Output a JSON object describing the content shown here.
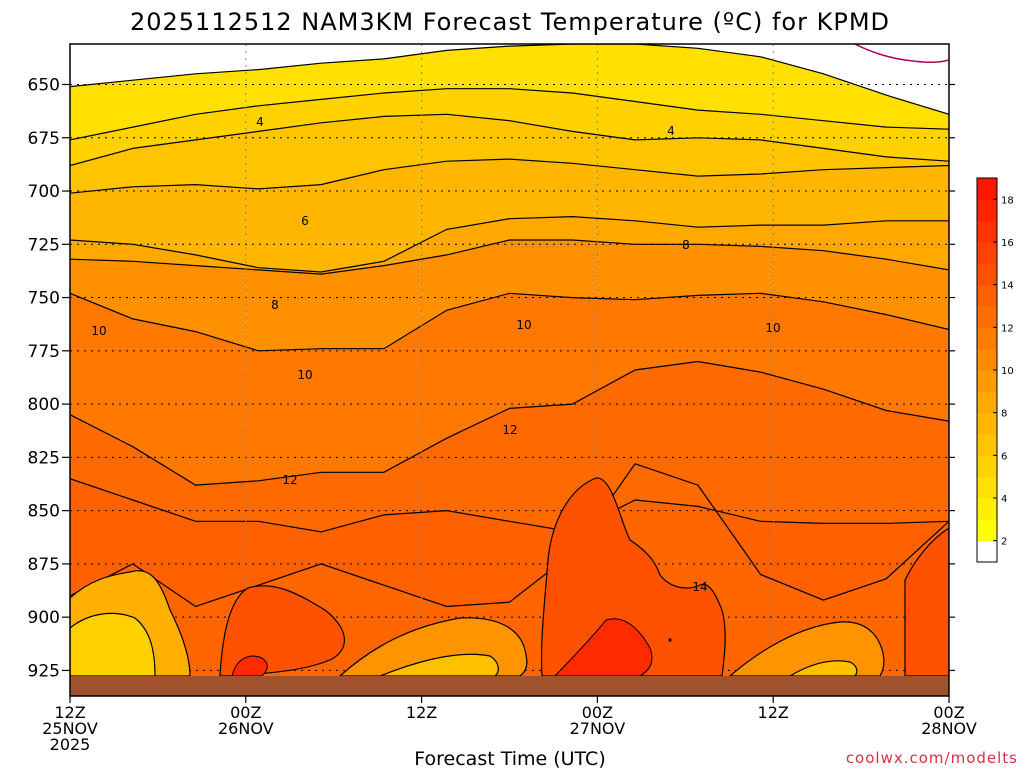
{
  "chart_data": {
    "type": "heatmap",
    "title": "2025112512 NAM3KM Forecast Temperature (ºC) for KPMD",
    "xlabel": "Forecast Time (UTC)",
    "ylabel": "",
    "credit": "coolwx.com/modelts",
    "pressure_axis": {
      "range": [
        631,
        937
      ],
      "ticks": [
        "650",
        "675",
        "700",
        "725",
        "750",
        "775",
        "800",
        "825",
        "850",
        "875",
        "900",
        "925"
      ],
      "tick_values": [
        650,
        675,
        700,
        725,
        750,
        775,
        800,
        825,
        850,
        875,
        900,
        925
      ]
    },
    "time_axis": {
      "range_hours": [
        0,
        60
      ],
      "ticks": [
        {
          "hour": 0,
          "line1": "12Z",
          "line2": "25NOV",
          "line3": "2025"
        },
        {
          "hour": 12,
          "line1": "00Z",
          "line2": "26NOV",
          "line3": ""
        },
        {
          "hour": 24,
          "line1": "12Z",
          "line2": "",
          "line3": ""
        },
        {
          "hour": 36,
          "line1": "00Z",
          "line2": "27NOV",
          "line3": ""
        },
        {
          "hour": 48,
          "line1": "12Z",
          "line2": "",
          "line3": ""
        },
        {
          "hour": 60,
          "line1": "00Z",
          "line2": "28NOV",
          "line3": ""
        }
      ]
    },
    "colorbar": {
      "labels": [
        "2",
        "4",
        "6",
        "8",
        "10",
        "12",
        "14",
        "16",
        "18"
      ],
      "levels": [
        0,
        2,
        3,
        4,
        5,
        6,
        7,
        8,
        9,
        10,
        11,
        12,
        13,
        14,
        15,
        16,
        17,
        18,
        19
      ],
      "colors": [
        "#ffffff",
        "#ffff00",
        "#ffee00",
        "#ffe000",
        "#ffd200",
        "#ffc400",
        "#ffb600",
        "#ffa800",
        "#ff9a00",
        "#ff8a00",
        "#ff7c00",
        "#ff6e00",
        "#ff6000",
        "#ff5000",
        "#ff4200",
        "#ff3400",
        "#ff2400",
        "#ff1600"
      ]
    },
    "series": [
      {
        "name": "2",
        "pressure": [
          651,
          648,
          645,
          643,
          640,
          638,
          634,
          632,
          631,
          631,
          633,
          637,
          645,
          655,
          664
        ]
      },
      {
        "name": "3",
        "pressure": [
          676,
          670,
          664,
          660,
          657,
          654,
          652,
          652,
          654,
          658,
          662,
          664,
          667,
          670,
          671
        ]
      },
      {
        "name": "4",
        "pressure": [
          688,
          680,
          676,
          672,
          668,
          665,
          664,
          667,
          672,
          676,
          675,
          676,
          680,
          684,
          686
        ]
      },
      {
        "name": "5",
        "pressure": [
          701,
          698,
          697,
          699,
          697,
          690,
          686,
          685,
          687,
          690,
          693,
          692,
          690,
          689,
          688
        ]
      },
      {
        "name": "6",
        "pressure": [
          723,
          725,
          730,
          736,
          738,
          733,
          718,
          713,
          712,
          714,
          717,
          716,
          716,
          714,
          714
        ]
      },
      {
        "name": "7",
        "pressure": [
          732,
          733,
          735,
          737,
          739,
          735,
          730,
          723,
          723,
          725,
          725,
          726,
          728,
          732,
          737
        ]
      },
      {
        "name": "8",
        "pressure": [
          748,
          760,
          766,
          775,
          774,
          774,
          756,
          748,
          750,
          751,
          749,
          748,
          752,
          758,
          765
        ]
      },
      {
        "name": "10",
        "pressure": [
          805,
          820,
          838,
          836,
          832,
          832,
          816,
          802,
          800,
          784,
          780,
          785,
          793,
          803,
          808
        ]
      },
      {
        "name": "12",
        "pressure": [
          835,
          845,
          855,
          855,
          860,
          852,
          850,
          855,
          860,
          845,
          848,
          855,
          856,
          856,
          855
        ]
      },
      {
        "name": "14",
        "pressure": [
          890,
          875,
          895,
          885,
          875,
          885,
          895,
          893,
          870,
          828,
          838,
          880,
          892,
          882,
          855
        ]
      }
    ],
    "contour_labels": [
      "4",
      "4",
      "6",
      "8",
      "8",
      "10",
      "10",
      "10",
      "10",
      "12",
      "12",
      "14"
    ]
  }
}
